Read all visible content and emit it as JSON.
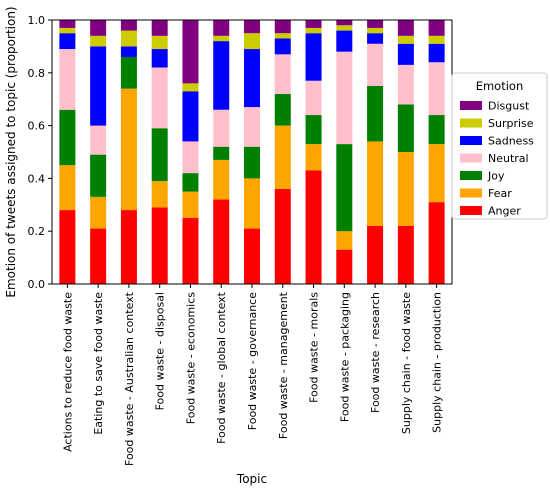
{
  "chart_data": {
    "type": "bar",
    "stacked": true,
    "title": "",
    "xlabel": "Topic",
    "ylabel": "Emotion of tweets assigned to topic (proportion)",
    "ylim": [
      0,
      1.0
    ],
    "yticks": [
      "0.0",
      "0.2",
      "0.4",
      "0.6",
      "0.8",
      "1.0"
    ],
    "categories": [
      "Actions to reduce food waste",
      "Eating to save food waste",
      "Food waste - Australian context",
      "Food waste - disposal",
      "Food waste - economics",
      "Food waste - global context",
      "Food waste - governance",
      "Food waste - management",
      "Food waste - morals",
      "Food waste - packaging",
      "Food waste - research",
      "Supply chain - food waste",
      "Supply chain - production"
    ],
    "legend": {
      "title": "Emotion",
      "placement": "right",
      "order": [
        "Disgust",
        "Surprise",
        "Sadness",
        "Neutral",
        "Joy",
        "Fear",
        "Anger"
      ]
    },
    "series": [
      {
        "name": "Anger",
        "color": "#ff0000",
        "values": [
          0.28,
          0.21,
          0.28,
          0.29,
          0.25,
          0.32,
          0.21,
          0.36,
          0.43,
          0.13,
          0.22,
          0.22,
          0.31
        ]
      },
      {
        "name": "Fear",
        "color": "#ffa500",
        "values": [
          0.17,
          0.12,
          0.46,
          0.1,
          0.1,
          0.15,
          0.19,
          0.24,
          0.1,
          0.07,
          0.32,
          0.28,
          0.22
        ]
      },
      {
        "name": "Joy",
        "color": "#008000",
        "values": [
          0.21,
          0.16,
          0.12,
          0.2,
          0.07,
          0.05,
          0.12,
          0.12,
          0.11,
          0.33,
          0.21,
          0.18,
          0.11
        ]
      },
      {
        "name": "Neutral",
        "color": "#ffc0cb",
        "values": [
          0.23,
          0.11,
          0.0,
          0.23,
          0.12,
          0.14,
          0.15,
          0.15,
          0.13,
          0.35,
          0.16,
          0.15,
          0.2
        ]
      },
      {
        "name": "Sadness",
        "color": "#0000ff",
        "values": [
          0.06,
          0.3,
          0.04,
          0.07,
          0.19,
          0.26,
          0.22,
          0.06,
          0.18,
          0.08,
          0.04,
          0.08,
          0.07
        ]
      },
      {
        "name": "Surprise",
        "color": "#cccc00",
        "values": [
          0.02,
          0.04,
          0.06,
          0.05,
          0.03,
          0.02,
          0.06,
          0.02,
          0.02,
          0.02,
          0.02,
          0.03,
          0.03
        ]
      },
      {
        "name": "Disgust",
        "color": "#800080",
        "values": [
          0.03,
          0.06,
          0.04,
          0.06,
          0.24,
          0.06,
          0.05,
          0.05,
          0.03,
          0.02,
          0.03,
          0.06,
          0.06
        ]
      }
    ]
  }
}
